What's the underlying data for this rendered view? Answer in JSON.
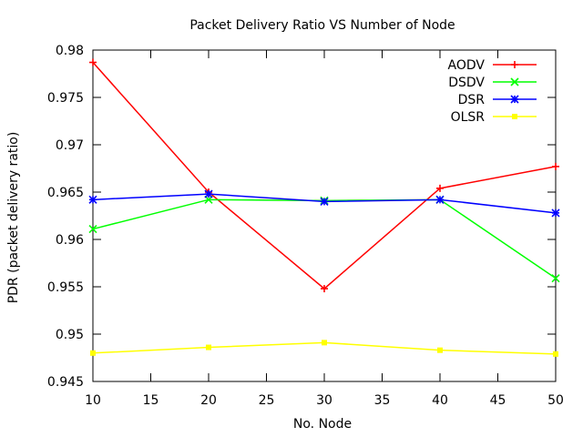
{
  "chart_data": {
    "type": "line",
    "title": "Packet Delivery Ratio VS Number of Node",
    "xlabel": "No. Node",
    "ylabel": "PDR (packet delivery ratio)",
    "xlim": [
      10,
      50
    ],
    "ylim": [
      0.945,
      0.98
    ],
    "xticks": [
      "10",
      "15",
      "20",
      "25",
      "30",
      "35",
      "40",
      "45",
      "50"
    ],
    "yticks": [
      "0.945",
      "0.95",
      "0.955",
      "0.96",
      "0.965",
      "0.97",
      "0.975",
      "0.98"
    ],
    "grid": false,
    "legend_position": "top-right",
    "x": [
      10,
      20,
      30,
      40,
      50
    ],
    "series": [
      {
        "name": "AODV",
        "color": "#ff0000",
        "marker": "plus",
        "values": [
          0.9787,
          0.965,
          0.9548,
          0.9654,
          0.9677
        ]
      },
      {
        "name": "DSDV",
        "color": "#00ff00",
        "marker": "cross",
        "values": [
          0.9611,
          0.9642,
          0.9641,
          0.9642,
          0.9559
        ]
      },
      {
        "name": "DSR",
        "color": "#0000ff",
        "marker": "star",
        "values": [
          0.9642,
          0.9648,
          0.964,
          0.9642,
          0.9628
        ]
      },
      {
        "name": "OLSR",
        "color": "#ffff00",
        "marker": "square",
        "values": [
          0.948,
          0.9486,
          0.9491,
          0.9483,
          0.9479
        ]
      }
    ]
  }
}
